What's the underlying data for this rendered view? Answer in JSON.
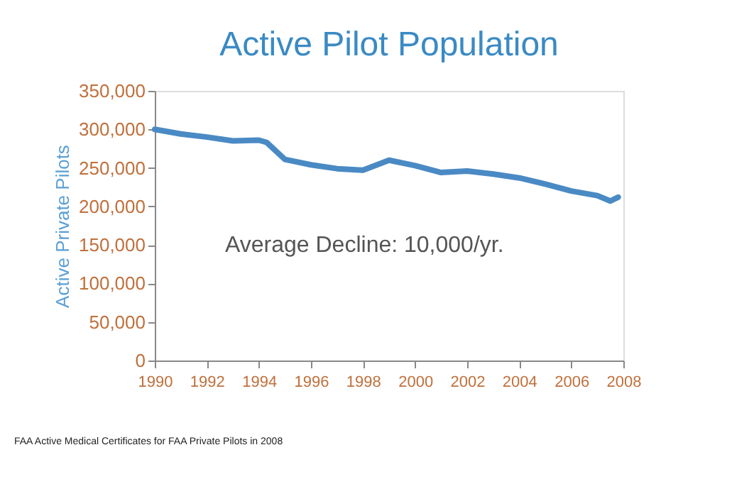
{
  "chart_data": {
    "type": "line",
    "title": "Active Pilot Population",
    "ylabel": "Active Private Pilots",
    "x": [
      1990,
      1991,
      1992,
      1993,
      1994,
      1994.3,
      1995,
      1996,
      1997,
      1998,
      1999,
      2000,
      2001,
      2002,
      2003,
      2004,
      2005,
      2006,
      2007,
      2007.5,
      2007.8
    ],
    "series": [
      {
        "color": "#4a8ac4",
        "values": [
          300000,
          294000,
          290000,
          285000,
          286000,
          283000,
          261000,
          254000,
          249000,
          247000,
          260000,
          253000,
          244000,
          246000,
          242000,
          237000,
          229000,
          220000,
          214000,
          207000,
          212000
        ]
      }
    ],
    "xlim": [
      1990,
      2008
    ],
    "xticks": [
      1990,
      1992,
      1994,
      1996,
      1998,
      2000,
      2002,
      2004,
      2006,
      2008
    ],
    "ylim": [
      0,
      350000
    ],
    "yticks": [
      0,
      {
        "value": 50000,
        "label": "50,000"
      },
      {
        "value": 100000,
        "label": "100,000"
      },
      {
        "value": 150000,
        "label": "150,000"
      },
      {
        "value": 200000,
        "label": "200,000"
      },
      {
        "value": 250000,
        "label": "250,000"
      },
      {
        "value": 300000,
        "label": "300,000"
      },
      {
        "value": 350000,
        "label": "350,000"
      }
    ],
    "grid": false,
    "marker": "none",
    "line_style": "solid",
    "annotations": [
      "Average Decline: 10,000/yr.",
      "FAA Active Medical Certificates for FAA Private Pilots in 2008"
    ]
  }
}
